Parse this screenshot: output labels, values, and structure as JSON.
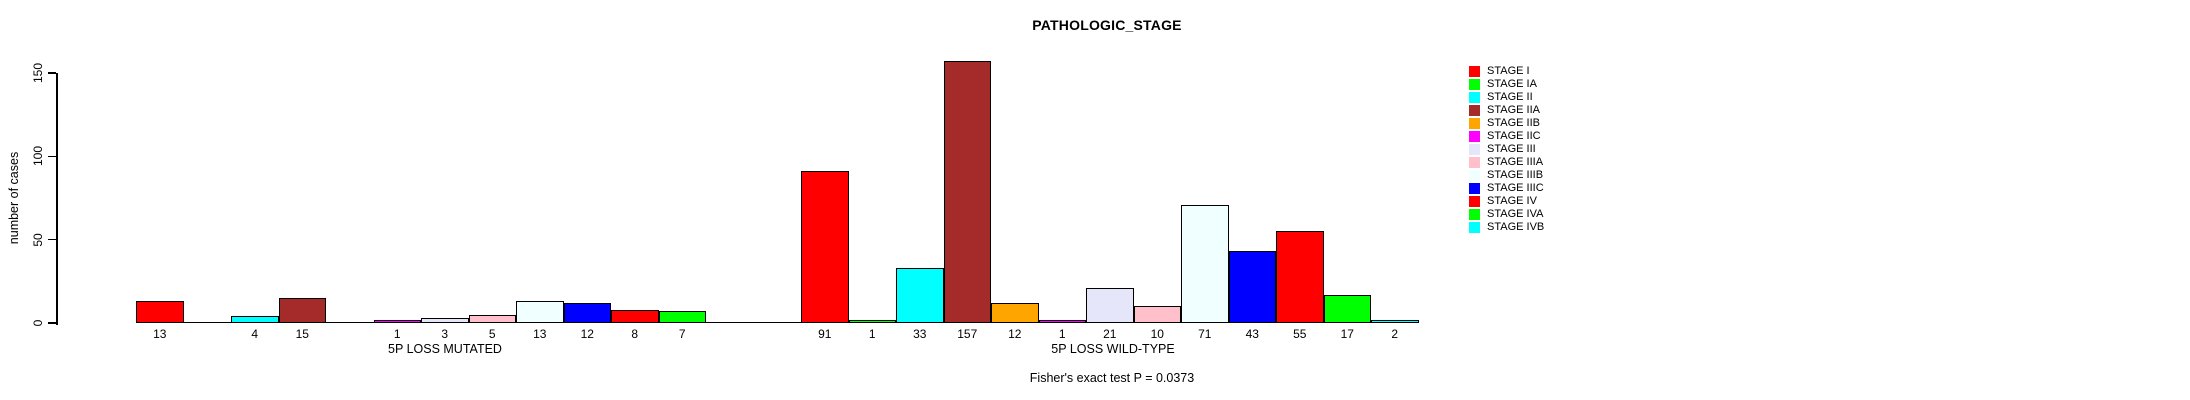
{
  "chart_data": {
    "type": "bar",
    "title": "PATHOLOGIC_STAGE",
    "ylabel": "number of cases",
    "xlabel": "",
    "ylim": [
      0,
      160
    ],
    "yticks": [
      0,
      50,
      100,
      150
    ],
    "grid": false,
    "legend_position": "right",
    "categories": [
      "STAGE I",
      "STAGE IA",
      "STAGE II",
      "STAGE IIA",
      "STAGE IIB",
      "STAGE IIC",
      "STAGE III",
      "STAGE IIIA",
      "STAGE IIIB",
      "STAGE IIIC",
      "STAGE IV",
      "STAGE IVA",
      "STAGE IVB"
    ],
    "colors": [
      "#FF0000",
      "#00FF00",
      "#00FFFF",
      "#A52A2A",
      "#FFA500",
      "#FF00FF",
      "#E6E6FA",
      "#FFC0CB",
      "#F0FFFF",
      "#0000FF",
      "#FF0000",
      "#00FF00",
      "#00FFFF"
    ],
    "series": [
      {
        "name": "5P LOSS MUTATED",
        "values": [
          13,
          0,
          4,
          15,
          0,
          1,
          3,
          5,
          13,
          12,
          8,
          7,
          0
        ]
      },
      {
        "name": "5P LOSS WILD-TYPE",
        "values": [
          91,
          1,
          33,
          157,
          12,
          1,
          21,
          10,
          71,
          43,
          55,
          17,
          2
        ]
      }
    ],
    "annotation": "Fisher's exact test P = 0.0373",
    "bar_border_color": "#000000",
    "axis_color": "#000000"
  }
}
